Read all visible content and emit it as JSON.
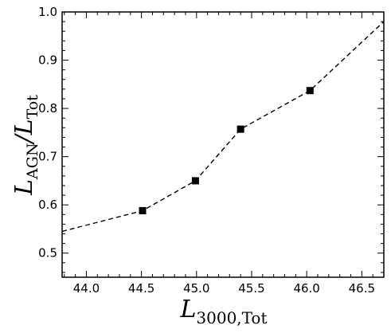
{
  "chart_data": {
    "type": "scatter",
    "title": "",
    "xlabel": {
      "main": "L",
      "sub": "3000,Tot"
    },
    "ylabel": {
      "main": "L",
      "sub1": "AGN",
      "sep": "/",
      "main2": "L",
      "sub2": "Tot"
    },
    "xlim": [
      43.78,
      46.7
    ],
    "ylim": [
      0.45,
      1.0
    ],
    "xticks": [
      44.0,
      44.5,
      45.0,
      45.5,
      46.0,
      46.5
    ],
    "yticks": [
      0.5,
      0.6,
      0.7,
      0.8,
      0.9,
      1.0
    ],
    "xtick_labels": [
      "44.0",
      "44.5",
      "45.0",
      "45.5",
      "46.0",
      "46.5"
    ],
    "ytick_labels": [
      "0.5",
      "0.6",
      "0.7",
      "0.8",
      "0.9",
      "1.0"
    ],
    "grid": false,
    "series": [
      {
        "style": "markers",
        "marker": "square",
        "x": [
          44.51,
          44.99,
          45.4,
          46.03
        ],
        "y": [
          0.588,
          0.65,
          0.757,
          0.837
        ]
      },
      {
        "style": "dashed-line",
        "x": [
          43.78,
          44.51,
          44.99,
          45.4,
          46.03,
          46.7
        ],
        "y": [
          0.545,
          0.588,
          0.65,
          0.757,
          0.837,
          0.98
        ]
      }
    ]
  }
}
